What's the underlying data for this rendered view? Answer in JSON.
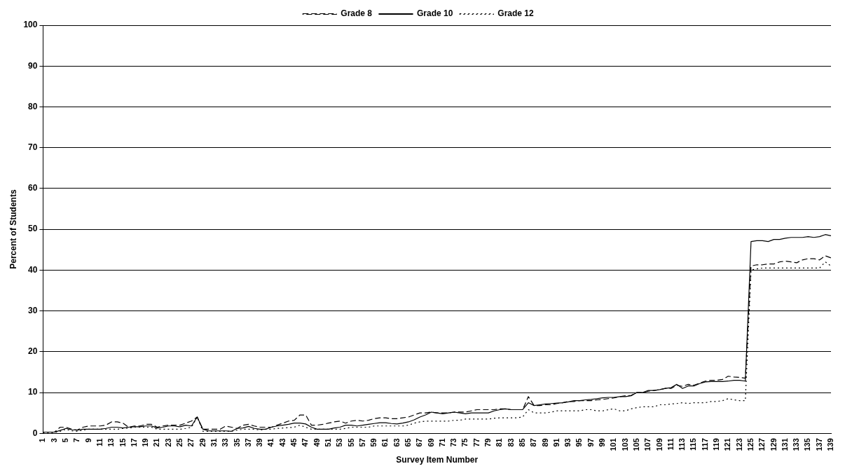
{
  "chart_data": {
    "type": "line",
    "xlabel": "Survey Item Number",
    "ylabel": "Percent of Students",
    "categories": [
      "1",
      null,
      "3",
      null,
      "5",
      null,
      "7",
      null,
      "9",
      null,
      "11",
      null,
      "13",
      null,
      "15",
      null,
      "17",
      null,
      "19",
      null,
      "21",
      null,
      "23",
      null,
      "25",
      null,
      "27",
      null,
      "29",
      null,
      "31",
      null,
      "33",
      null,
      "35",
      null,
      "37",
      null,
      "39",
      null,
      "41",
      null,
      "43",
      null,
      "45",
      null,
      "47",
      null,
      "49",
      null,
      "51",
      null,
      "53",
      null,
      "55",
      null,
      "57",
      null,
      "59",
      null,
      "61",
      null,
      "63",
      null,
      "65",
      null,
      "67",
      null,
      "69",
      null,
      "71",
      null,
      "73",
      null,
      "75",
      null,
      "77",
      null,
      "79",
      null,
      "81",
      null,
      "83",
      null,
      "85",
      null,
      "87",
      null,
      "89",
      null,
      "91",
      null,
      "93",
      null,
      "95",
      null,
      "97",
      null,
      "99",
      null,
      "101",
      null,
      "103",
      null,
      "105",
      null,
      "107",
      null,
      "109",
      null,
      "111",
      null,
      "113",
      null,
      "115",
      null,
      "117",
      null,
      "119",
      null,
      "121",
      null,
      "123",
      null,
      "125",
      null,
      "127",
      null,
      "129",
      null,
      "131",
      null,
      "133",
      null,
      "135",
      null,
      "137",
      null,
      "139"
    ],
    "series": [
      {
        "name": "Grade 8",
        "color": "#000000",
        "line_style": "dashed",
        "values": [
          0.3,
          0.3,
          0.3,
          1.5,
          1.5,
          1,
          0.8,
          1.5,
          1.8,
          1.8,
          1.8,
          2,
          2.8,
          2.8,
          2.5,
          1.5,
          1.8,
          1.8,
          2.2,
          2.2,
          1.5,
          1.8,
          2,
          2,
          2,
          2.5,
          3,
          4,
          1,
          1,
          1,
          1,
          1.8,
          1.5,
          1.2,
          2,
          2.2,
          1.8,
          1.5,
          1.5,
          1.5,
          2,
          2.5,
          3,
          3.2,
          4.5,
          4.5,
          2,
          2,
          2.2,
          2.5,
          2.8,
          3,
          2.5,
          3,
          3.2,
          3,
          3.2,
          3.6,
          3.8,
          3.8,
          3.6,
          3.6,
          3.8,
          4,
          4.5,
          5,
          5,
          5.2,
          5,
          5,
          5,
          5.2,
          5.2,
          5.2,
          5.5,
          5.8,
          5.8,
          5.8,
          5.8,
          6,
          6,
          5.8,
          5.8,
          5.8,
          9,
          6.8,
          6.8,
          7,
          7,
          7.3,
          7.5,
          7.8,
          7.8,
          8,
          8,
          8,
          8.2,
          8.3,
          8.5,
          8.7,
          9,
          9.2,
          9.3,
          10,
          10,
          10.3,
          10.5,
          10.7,
          11,
          11,
          11.8,
          11.5,
          12,
          11.8,
          12.3,
          12.8,
          13,
          13,
          13.2,
          14,
          13.8,
          13.7,
          13.5,
          41,
          41.3,
          41.3,
          41.5,
          41.5,
          42,
          42.2,
          42,
          41.8,
          42.5,
          42.8,
          42.8,
          42.5,
          43.5,
          43
        ]
      },
      {
        "name": "Grade 10",
        "color": "#000000",
        "line_style": "solid",
        "values": [
          0.3,
          0.3,
          0.3,
          0.7,
          1.2,
          0.9,
          0.8,
          1,
          1,
          1,
          1,
          1.2,
          1.5,
          1.5,
          1.3,
          1.5,
          1.6,
          1.6,
          1.8,
          1.8,
          1.3,
          1.5,
          1.8,
          1.8,
          1.6,
          2,
          1.8,
          4,
          1,
          0.6,
          0.6,
          0.6,
          0.6,
          0.5,
          1.2,
          1.3,
          1.7,
          1.2,
          1,
          1,
          1.5,
          1.8,
          2,
          2.2,
          2.5,
          2.5,
          2.3,
          1.5,
          1,
          1,
          1,
          1.3,
          1.5,
          2,
          2,
          1.8,
          2,
          2.2,
          2.4,
          2.6,
          2.6,
          2.4,
          2.3,
          2.5,
          2.8,
          3.3,
          4,
          4.5,
          5.2,
          5,
          4.8,
          5,
          5.2,
          5,
          4.8,
          5,
          5,
          5,
          5,
          5.5,
          5.8,
          6,
          5.8,
          5.8,
          5.8,
          7.5,
          6.8,
          7,
          7.2,
          7.3,
          7.4,
          7.5,
          7.7,
          8,
          8,
          8.2,
          8.3,
          8.5,
          8.7,
          8.8,
          8.8,
          9,
          9,
          9.2,
          10,
          10,
          10.5,
          10.5,
          10.7,
          11,
          11.2,
          12,
          11,
          11.6,
          11.6,
          12.2,
          12.6,
          12.7,
          12.7,
          12.7,
          12.8,
          13,
          13,
          12.8,
          47,
          47.2,
          47.2,
          47,
          47.5,
          47.5,
          47.8,
          48,
          48,
          48,
          48.2,
          48,
          48.2,
          48.7,
          48.4
        ]
      },
      {
        "name": "Grade 12",
        "color": "#000000",
        "line_style": "dotted",
        "values": [
          0.2,
          0.2,
          0.2,
          0.5,
          1,
          0.6,
          0.5,
          0.8,
          1,
          1,
          1,
          1,
          1,
          1,
          1.2,
          1.3,
          1.5,
          1.5,
          1.5,
          1.5,
          1,
          1,
          1,
          1,
          1,
          1.2,
          1.5,
          4,
          0.5,
          0.5,
          0.5,
          0.5,
          0.5,
          0.5,
          0.8,
          1,
          1,
          1,
          0.8,
          1,
          1,
          1.2,
          1.3,
          1.4,
          1.5,
          2,
          1.5,
          1,
          1,
          1,
          1,
          1,
          1,
          1.2,
          1.5,
          1.5,
          1.5,
          1.5,
          1.8,
          1.8,
          1.8,
          1.8,
          1.8,
          1.8,
          2,
          2.5,
          2.8,
          3,
          3,
          3,
          3,
          3,
          3.2,
          3.2,
          3.5,
          3.5,
          3.5,
          3.5,
          3.5,
          3.7,
          3.8,
          3.8,
          3.8,
          3.8,
          4,
          5.8,
          5,
          5,
          5,
          5.2,
          5.5,
          5.5,
          5.5,
          5.5,
          5.5,
          5.8,
          5.8,
          5.5,
          5.5,
          5.8,
          6,
          5.5,
          5.5,
          6,
          6.3,
          6.5,
          6.5,
          6.5,
          7,
          7,
          7.2,
          7.3,
          7.5,
          7.3,
          7.5,
          7.5,
          7.5,
          7.8,
          7.8,
          8,
          8.5,
          8.2,
          8,
          8,
          40,
          40.3,
          40.5,
          40.5,
          40.5,
          40.5,
          40.5,
          40.5,
          40.5,
          40.5,
          40.5,
          40.5,
          40.5,
          42,
          41
        ]
      }
    ],
    "ylim": [
      0,
      100
    ],
    "yticks": [
      0,
      10,
      20,
      30,
      40,
      50,
      60,
      70,
      80,
      90,
      100
    ],
    "grid": "y",
    "legend": "top",
    "marker": "none"
  }
}
